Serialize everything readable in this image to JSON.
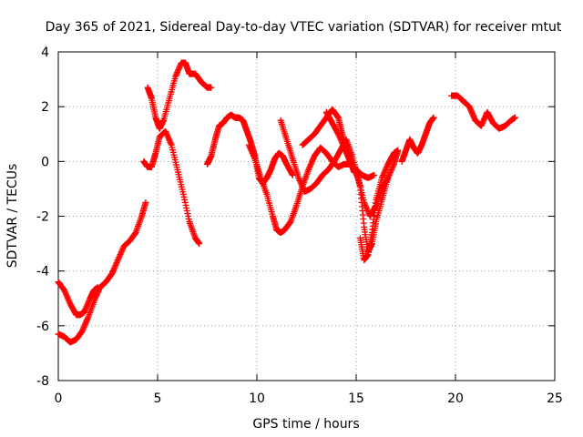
{
  "chart_data": {
    "type": "scatter",
    "title": "Day 365 of 2021, Sidereal Day-to-day VTEC variation (SDTVAR) for receiver mtut",
    "xlabel": "GPS time / hours",
    "ylabel": "SDTVAR / TECUs",
    "xlim": [
      0,
      25
    ],
    "ylim": [
      -8,
      4
    ],
    "xticks": [
      0,
      5,
      10,
      15,
      20,
      25
    ],
    "xtick_labels": [
      "0",
      "5",
      "10",
      "15",
      "20",
      "25"
    ],
    "yticks": [
      -8,
      -6,
      -4,
      -2,
      0,
      2,
      4
    ],
    "ytick_labels": [
      "-8",
      "-6",
      "-4",
      "-2",
      "0",
      "2",
      "4"
    ],
    "grid": true,
    "legend": "none",
    "marker": "plus",
    "color": "#ff0000",
    "series": [
      {
        "x": [
          0.0,
          0.3,
          0.6,
          0.9,
          1.1,
          1.3,
          1.6,
          1.8,
          2.0
        ],
        "y": [
          -4.4,
          -4.7,
          -5.2,
          -5.6,
          -5.6,
          -5.5,
          -5.0,
          -4.7,
          -4.6
        ]
      },
      {
        "x": [
          0.0,
          0.3,
          0.6,
          0.9,
          1.2,
          1.5,
          1.8,
          2.1,
          2.4,
          2.7,
          3.0,
          3.3,
          3.6,
          3.9,
          4.2,
          4.4
        ],
        "y": [
          -6.3,
          -6.4,
          -6.6,
          -6.5,
          -6.2,
          -5.7,
          -5.1,
          -4.6,
          -4.4,
          -4.1,
          -3.6,
          -3.1,
          -2.9,
          -2.6,
          -2.0,
          -1.5
        ]
      },
      {
        "x": [
          4.3,
          4.5,
          4.7,
          4.9,
          5.1,
          5.4,
          5.7,
          6.0,
          6.3,
          6.6,
          6.9,
          7.1
        ],
        "y": [
          0.0,
          -0.2,
          -0.2,
          0.3,
          0.9,
          1.1,
          0.6,
          -0.3,
          -1.2,
          -2.2,
          -2.8,
          -3.0
        ]
      },
      {
        "x": [
          4.5,
          4.7,
          4.9,
          5.1,
          5.3,
          5.6,
          5.9,
          6.2,
          6.4,
          6.6,
          6.9,
          7.2,
          7.5,
          7.7
        ],
        "y": [
          2.7,
          2.3,
          1.6,
          1.2,
          1.5,
          2.3,
          3.1,
          3.6,
          3.6,
          3.2,
          3.2,
          2.9,
          2.7,
          2.7
        ]
      },
      {
        "x": [
          7.5,
          7.7,
          7.9,
          8.1,
          8.3,
          8.5,
          8.7,
          8.9,
          9.1,
          9.3,
          9.5,
          9.7,
          9.9,
          10.1,
          10.3,
          10.5,
          10.7,
          10.9,
          11.1,
          11.3,
          11.5,
          11.8
        ],
        "y": [
          -0.1,
          0.2,
          0.8,
          1.3,
          1.4,
          1.6,
          1.7,
          1.6,
          1.6,
          1.5,
          1.1,
          0.7,
          0.2,
          -0.6,
          -0.8,
          -0.6,
          -0.3,
          0.1,
          0.3,
          0.2,
          -0.1,
          -0.5
        ]
      },
      {
        "x": [
          9.6,
          9.9,
          10.2,
          10.5,
          10.8,
          11.0,
          11.2,
          11.4,
          11.7,
          12.0,
          12.3,
          12.6,
          12.9,
          13.2,
          13.5,
          13.8,
          14.1,
          14.4,
          14.7,
          15.0,
          15.3,
          15.6,
          15.9
        ],
        "y": [
          0.6,
          0.1,
          -0.6,
          -1.2,
          -2.0,
          -2.5,
          -2.6,
          -2.5,
          -2.2,
          -1.6,
          -0.9,
          -0.3,
          0.2,
          0.5,
          0.3,
          0.0,
          -0.2,
          -0.1,
          -0.1,
          -0.3,
          -0.5,
          -0.6,
          -0.5
        ]
      },
      {
        "x": [
          11.2,
          11.5,
          11.8,
          12.1,
          12.4,
          12.7,
          13.0,
          13.3,
          13.6,
          13.9,
          14.2,
          14.5,
          14.8,
          15.1,
          15.4,
          15.7,
          16.0,
          16.3,
          16.6,
          16.9,
          17.1
        ],
        "y": [
          1.5,
          0.8,
          0.1,
          -0.6,
          -1.1,
          -1.0,
          -0.8,
          -0.5,
          -0.3,
          0.0,
          0.4,
          0.8,
          0.2,
          -0.6,
          -1.5,
          -2.0,
          -1.6,
          -1.0,
          -0.6,
          -0.1,
          0.4
        ]
      },
      {
        "x": [
          12.3,
          12.6,
          12.9,
          13.2,
          13.5,
          13.8,
          14.1,
          14.3,
          14.5,
          14.7,
          15.0,
          15.2,
          15.4,
          15.6,
          15.8,
          16.0,
          16.3,
          16.6
        ],
        "y": [
          0.6,
          0.8,
          1.0,
          1.3,
          1.6,
          1.9,
          1.6,
          1.0,
          0.4,
          0.0,
          -0.4,
          -0.9,
          -2.4,
          -3.3,
          -3.0,
          -2.2,
          -1.4,
          -0.6
        ]
      },
      {
        "x": [
          13.5,
          13.8,
          14.1,
          14.4,
          14.7,
          14.9
        ],
        "y": [
          1.8,
          1.4,
          1.0,
          0.5,
          0.0,
          -0.4
        ]
      },
      {
        "x": [
          15.2,
          15.4,
          15.6,
          15.8,
          16.0,
          16.3,
          16.6,
          16.9,
          17.1
        ],
        "y": [
          -2.8,
          -3.6,
          -3.4,
          -2.6,
          -1.4,
          -0.6,
          -0.1,
          0.3,
          0.4
        ]
      },
      {
        "x": [
          17.3,
          17.5,
          17.7,
          17.9,
          18.1,
          18.3,
          18.5,
          18.7,
          18.9
        ],
        "y": [
          0.0,
          0.4,
          0.8,
          0.5,
          0.3,
          0.6,
          1.0,
          1.4,
          1.6
        ]
      },
      {
        "x": [
          19.8,
          20.1,
          20.4,
          20.7,
          21.0,
          21.3,
          21.6,
          21.9,
          22.2,
          22.5,
          22.8,
          23.0
        ],
        "y": [
          2.4,
          2.4,
          2.2,
          2.0,
          1.5,
          1.3,
          1.8,
          1.4,
          1.2,
          1.3,
          1.5,
          1.6
        ]
      }
    ]
  }
}
